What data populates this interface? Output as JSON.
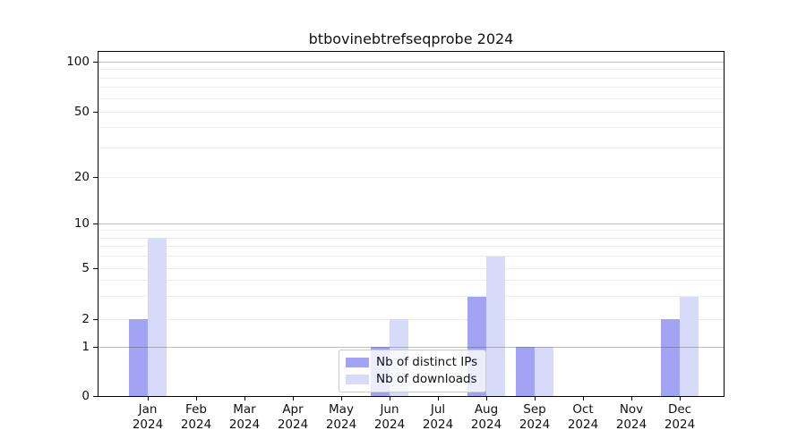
{
  "chart_data": {
    "type": "bar",
    "title": "btbovinebtrefseqprobe 2024",
    "year_label": "2024",
    "categories": [
      "Jan",
      "Feb",
      "Mar",
      "Apr",
      "May",
      "Jun",
      "Jul",
      "Aug",
      "Sep",
      "Oct",
      "Nov",
      "Dec"
    ],
    "series": [
      {
        "name": "Nb of distinct IPs",
        "color": "#a2a3f2",
        "values": [
          2,
          0,
          0,
          0,
          0,
          1,
          0,
          3,
          1,
          0,
          0,
          2
        ]
      },
      {
        "name": "Nb of downloads",
        "color": "#d8daf9",
        "values": [
          8,
          0,
          0,
          0,
          0,
          2,
          0,
          6,
          1,
          0,
          0,
          3
        ]
      }
    ],
    "xlabel": "",
    "ylabel": "",
    "y_axis": {
      "scale": "log1p",
      "range": [
        0,
        100
      ],
      "tick_values": [
        0,
        1,
        2,
        5,
        10,
        20,
        50,
        100
      ],
      "tick_labels": [
        "0",
        "1",
        "2",
        "5",
        "10",
        "20",
        "50",
        "100"
      ],
      "major_gridlines": [
        1,
        10,
        100
      ],
      "minor_gridlines": [
        2,
        3,
        4,
        5,
        6,
        7,
        8,
        9,
        20,
        30,
        40,
        50,
        60,
        70,
        80,
        90
      ]
    },
    "grid": true,
    "legend": {
      "position": "inside-bottom-center",
      "entries": [
        "Nb of distinct IPs",
        "Nb of downloads"
      ]
    }
  }
}
